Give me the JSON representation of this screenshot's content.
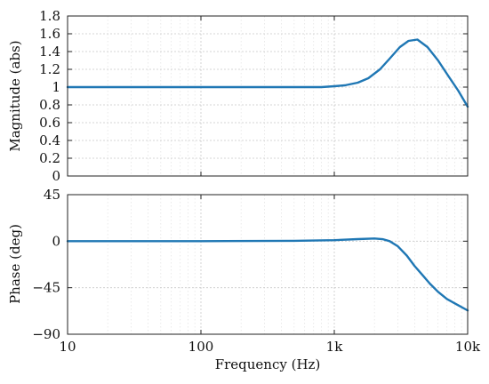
{
  "chart_data": [
    {
      "type": "line",
      "title": "",
      "xlabel": "",
      "ylabel": "Magnitude (abs)",
      "xscale": "log",
      "xlim": [
        10,
        10000
      ],
      "ylim": [
        0,
        1.8
      ],
      "yticks": [
        0,
        0.2,
        0.4,
        0.6,
        0.8,
        1,
        1.2,
        1.4,
        1.6,
        1.8
      ],
      "ytick_labels": [
        "0",
        "0.2",
        "0.4",
        "0.6",
        "0.8",
        "1",
        "1.2",
        "1.4",
        "1.6",
        "1.8"
      ],
      "grid": true,
      "color": "#1f77b4",
      "series": [
        {
          "x": [
            10,
            100,
            800,
            1000,
            1200,
            1500,
            1800,
            2200,
            2600,
            3100,
            3600,
            4200,
            5000,
            6000,
            7200,
            8500,
            10000
          ],
          "values": [
            1.0,
            1.0,
            1.0,
            1.01,
            1.02,
            1.05,
            1.1,
            1.2,
            1.32,
            1.45,
            1.52,
            1.535,
            1.45,
            1.3,
            1.12,
            0.96,
            0.78
          ]
        }
      ]
    },
    {
      "type": "line",
      "title": "",
      "xlabel": "Frequency (Hz)",
      "ylabel": "Phase (deg)",
      "xscale": "log",
      "xlim": [
        10,
        10000
      ],
      "ylim": [
        -90,
        45
      ],
      "yticks": [
        -90,
        -45,
        0,
        45
      ],
      "ytick_labels": [
        "−90",
        "−45",
        "0",
        "45"
      ],
      "xticks": [
        10,
        100,
        1000,
        10000
      ],
      "xtick_labels": [
        "10",
        "100",
        "1k",
        "10k"
      ],
      "grid": true,
      "color": "#1f77b4",
      "series": [
        {
          "x": [
            10,
            100,
            500,
            1000,
            1500,
            2000,
            2300,
            2600,
            3000,
            3500,
            4000,
            4600,
            5200,
            6000,
            7000,
            8500,
            10000
          ],
          "values": [
            0,
            0,
            0.3,
            1,
            2,
            2.6,
            2,
            0,
            -5,
            -14,
            -24,
            -33,
            -41,
            -49,
            -56,
            -62,
            -67
          ]
        }
      ]
    }
  ]
}
